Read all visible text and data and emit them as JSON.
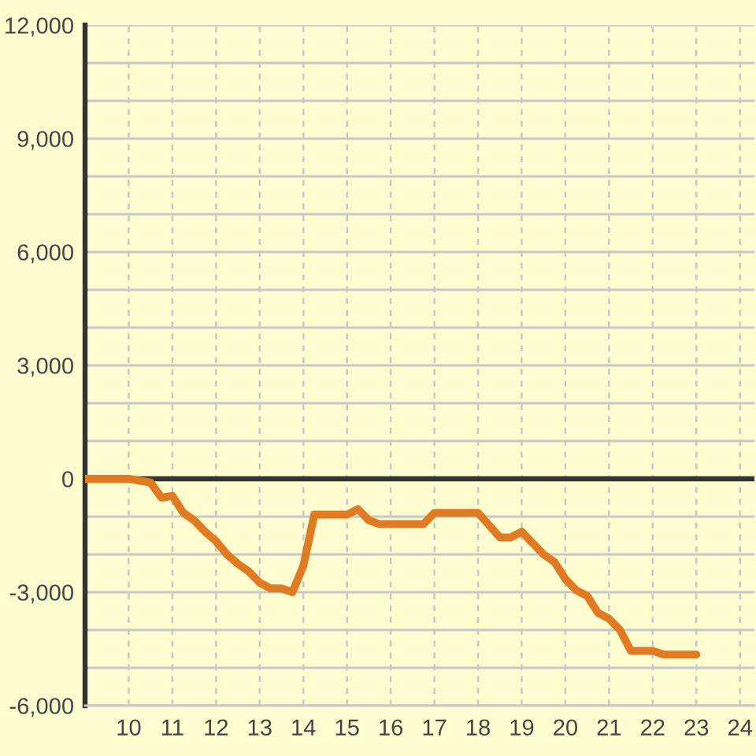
{
  "chart_data": {
    "type": "line",
    "x": [
      9,
      10,
      10.5,
      10.75,
      11,
      11.25,
      11.5,
      11.75,
      12,
      12.25,
      12.5,
      12.75,
      13,
      13.25,
      13.5,
      13.75,
      14,
      14.25,
      15,
      15.25,
      15.5,
      15.75,
      16.75,
      17,
      18,
      18.5,
      18.75,
      19,
      19.5,
      19.75,
      20,
      20.25,
      20.5,
      20.75,
      21,
      21.25,
      21.5,
      22,
      22.25,
      23
    ],
    "series": [
      {
        "color": "#e07b24",
        "values": [
          0,
          0,
          -100,
          -500,
          -450,
          -900,
          -1100,
          -1400,
          -1650,
          -2000,
          -2250,
          -2450,
          -2750,
          -2900,
          -2900,
          -3000,
          -2300,
          -950,
          -950,
          -800,
          -1100,
          -1200,
          -1200,
          -900,
          -900,
          -1550,
          -1550,
          -1400,
          -2000,
          -2200,
          -2650,
          -2950,
          -3100,
          -3550,
          -3700,
          -4000,
          -4550,
          -4550,
          -4650,
          -4650
        ]
      }
    ],
    "xlim": [
      9,
      24.33
    ],
    "xticks": [
      10,
      11,
      12,
      13,
      14,
      15,
      16,
      17,
      18,
      19,
      20,
      21,
      22,
      23,
      24
    ],
    "ylim": [
      -6000,
      12000
    ],
    "yticks": [
      {
        "value": -6000,
        "label": "-6,000"
      },
      {
        "value": -5000,
        "label": null
      },
      {
        "value": -4000,
        "label": null
      },
      {
        "value": -3000,
        "label": "-3,000"
      },
      {
        "value": -2000,
        "label": null
      },
      {
        "value": -1000,
        "label": null
      },
      0,
      {
        "value": 1000,
        "label": null
      },
      {
        "value": 2000,
        "label": null
      },
      {
        "value": 3000,
        "label": "3,000"
      },
      {
        "value": 4000,
        "label": null
      },
      {
        "value": 5000,
        "label": null
      },
      {
        "value": 6000,
        "label": "6,000"
      },
      {
        "value": 7000,
        "label": null
      },
      {
        "value": 8000,
        "label": null
      },
      {
        "value": 9000,
        "label": "9,000"
      },
      {
        "value": 10000,
        "label": null
      },
      {
        "value": 11000,
        "label": null
      },
      {
        "value": 12000,
        "label": "12,000"
      }
    ],
    "grid": true,
    "ref_lines": [
      {
        "axis": "y",
        "value": 0,
        "color": "#333333"
      }
    ]
  }
}
